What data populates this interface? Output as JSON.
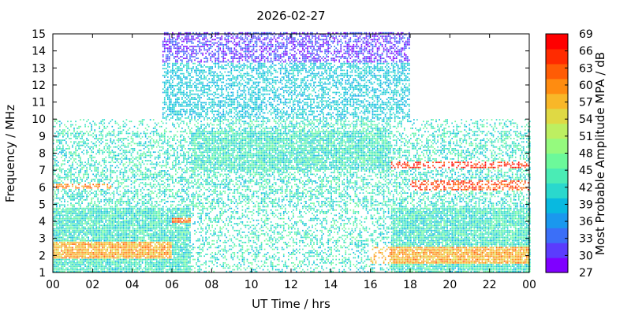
{
  "chart_data": {
    "type": "heatmap",
    "title": "2026-02-27",
    "xlabel": "UT Time / hrs",
    "ylabel": "Frequency / MHz",
    "colorbar_label": "Most Probable Amplitude MPA / dB",
    "xlim": [
      0,
      24
    ],
    "ylim": [
      1,
      15
    ],
    "x_tick_labels": [
      "00",
      "02",
      "04",
      "06",
      "08",
      "10",
      "12",
      "14",
      "16",
      "18",
      "20",
      "22",
      "00"
    ],
    "y_tick_labels": [
      "1",
      "2",
      "3",
      "4",
      "5",
      "6",
      "7",
      "8",
      "9",
      "10",
      "11",
      "12",
      "13",
      "14",
      "15"
    ],
    "colorbar_ticks": [
      "27",
      "30",
      "33",
      "36",
      "39",
      "42",
      "45",
      "48",
      "51",
      "54",
      "57",
      "60",
      "63",
      "66",
      "69"
    ],
    "colorbar_range": [
      27,
      69
    ],
    "colorbar_colors": [
      "#7f00ff",
      "#5b3cfd",
      "#3b6ff8",
      "#1a98ee",
      "#08b9e0",
      "#2ad8cd",
      "#4aecb5",
      "#6cf99a",
      "#95fa7e",
      "#bdef61",
      "#dfd944",
      "#f8b728",
      "#ff8c10",
      "#ff5c05",
      "#ff2b00",
      "#ff0000"
    ],
    "grid": false,
    "legend": "colorbar-right",
    "coverage": {
      "low_band_mhz": [
        1,
        10
      ],
      "low_band_hours": [
        0,
        24
      ],
      "high_band_mhz": [
        10,
        15
      ],
      "high_band_hours": [
        5.5,
        18
      ]
    },
    "features": [
      {
        "hours": [
          0,
          6
        ],
        "freq_mhz": [
          1.8,
          2.8
        ],
        "level_db": 60
      },
      {
        "hours": [
          0,
          3
        ],
        "freq_mhz": [
          5.9,
          6.2
        ],
        "level_db": 62
      },
      {
        "hours": [
          6,
          7
        ],
        "freq_mhz": [
          3.9,
          4.2
        ],
        "level_db": 64
      },
      {
        "hours": [
          17,
          24
        ],
        "freq_mhz": [
          7.1,
          7.5
        ],
        "level_db": 68
      },
      {
        "hours": [
          18,
          24
        ],
        "freq_mhz": [
          5.8,
          6.4
        ],
        "level_db": 66
      },
      {
        "hours": [
          16,
          24
        ],
        "freq_mhz": [
          1.5,
          2.5
        ],
        "level_db": 60
      },
      {
        "hours": [
          9,
          16
        ],
        "freq_mhz": [
          10,
          15
        ],
        "level_db": 39
      },
      {
        "hours": [
          5.5,
          18
        ],
        "freq_mhz": [
          13.5,
          15
        ],
        "level_db": 30
      }
    ]
  }
}
